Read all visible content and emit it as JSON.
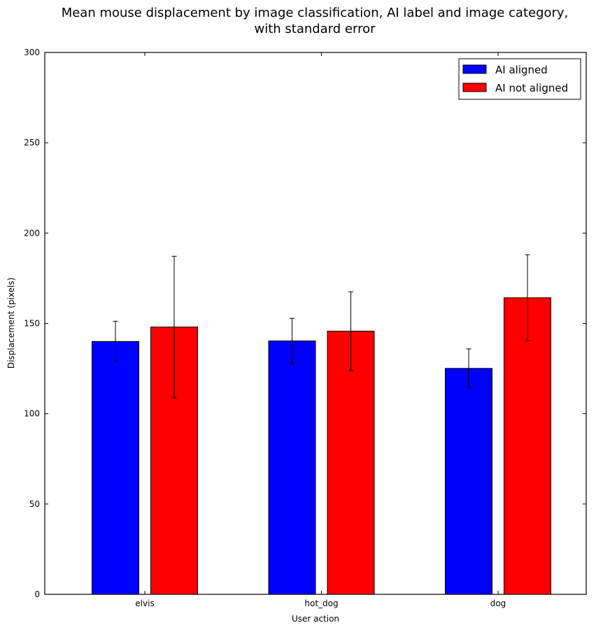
{
  "chart_data": {
    "type": "bar",
    "title": [
      "Mean mouse displacement by image classification, AI label and image category,",
      "with standard error"
    ],
    "xlabel": "User action",
    "ylabel": "Displacement (pixels)",
    "categories": [
      "elvis",
      "hot_dog",
      "dog"
    ],
    "ylim": [
      0,
      300
    ],
    "yticks": [
      0,
      50,
      100,
      150,
      200,
      250,
      300
    ],
    "grid": false,
    "legend": "top-right",
    "series": [
      {
        "name": "AI aligned",
        "color": "#0000ff",
        "values": [
          140,
          140.3,
          125.1
        ],
        "errors": [
          11.2,
          12.5,
          10.8
        ]
      },
      {
        "name": "AI not aligned",
        "color": "#ff0000",
        "values": [
          148,
          145.7,
          164.2
        ],
        "errors": [
          39.2,
          21.8,
          23.8
        ]
      }
    ]
  }
}
